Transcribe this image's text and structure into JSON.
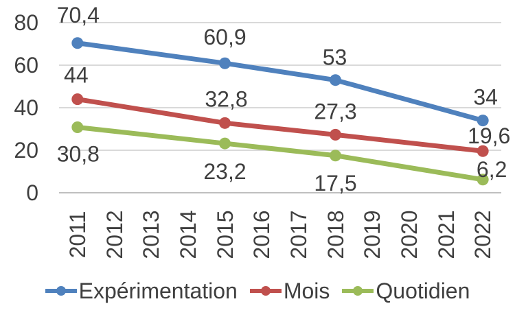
{
  "chart_data": {
    "type": "line",
    "categories": [
      "2011",
      "2012",
      "2013",
      "2014",
      "2015",
      "2016",
      "2017",
      "2018",
      "2019",
      "2020",
      "2021",
      "2022"
    ],
    "y_ticks": [
      0,
      20,
      40,
      60,
      80
    ],
    "y_tick_labels": [
      "0",
      "20",
      "40",
      "60",
      "80"
    ],
    "ylim": [
      0,
      80
    ],
    "grid": true,
    "legend_position": "bottom",
    "text_color": "#3F3F3F",
    "grid_color": "#D9D9D9",
    "axis_color": "#BFBFBF",
    "series": [
      {
        "name": "Expérimentation",
        "color": "#4F81BD",
        "points": [
          {
            "x": "2011",
            "value": 70.4,
            "label": "70,4",
            "offset": [
              1,
              -41
            ]
          },
          {
            "x": "2015",
            "value": 60.9,
            "label": "60,9",
            "offset": [
              0,
              -38
            ]
          },
          {
            "x": "2018",
            "value": 53,
            "label": "53",
            "offset": [
              -1,
              -33
            ]
          },
          {
            "x": "2022",
            "value": 34,
            "label": "34",
            "offset": [
              4,
              -34
            ]
          }
        ]
      },
      {
        "name": "Mois",
        "color": "#C0504D",
        "points": [
          {
            "x": "2011",
            "value": 44,
            "label": "44",
            "offset": [
              -2,
              -35
            ]
          },
          {
            "x": "2015",
            "value": 32.8,
            "label": "32,8",
            "offset": [
              2,
              -35
            ]
          },
          {
            "x": "2018",
            "value": 27.3,
            "label": "27,3",
            "offset": [
              0,
              -34
            ]
          },
          {
            "x": "2022",
            "value": 19.6,
            "label": "19,6",
            "offset": [
              9,
              -22
            ]
          }
        ]
      },
      {
        "name": "Quotidien",
        "color": "#9BBB59",
        "points": [
          {
            "x": "2011",
            "value": 30.8,
            "label": "30,8",
            "offset": [
              1,
              39
            ]
          },
          {
            "x": "2015",
            "value": 23.2,
            "label": "23,2",
            "offset": [
              0,
              41
            ]
          },
          {
            "x": "2018",
            "value": 17.5,
            "label": "17,5",
            "offset": [
              0,
              40
            ]
          },
          {
            "x": "2022",
            "value": 6.2,
            "label": "6,2",
            "offset": [
              13,
              -15
            ]
          }
        ]
      }
    ]
  },
  "legend": {
    "items": [
      {
        "label": "Expérimentation",
        "color": "#4F81BD"
      },
      {
        "label": "Mois",
        "color": "#C0504D"
      },
      {
        "label": "Quotidien",
        "color": "#9BBB59"
      }
    ]
  }
}
